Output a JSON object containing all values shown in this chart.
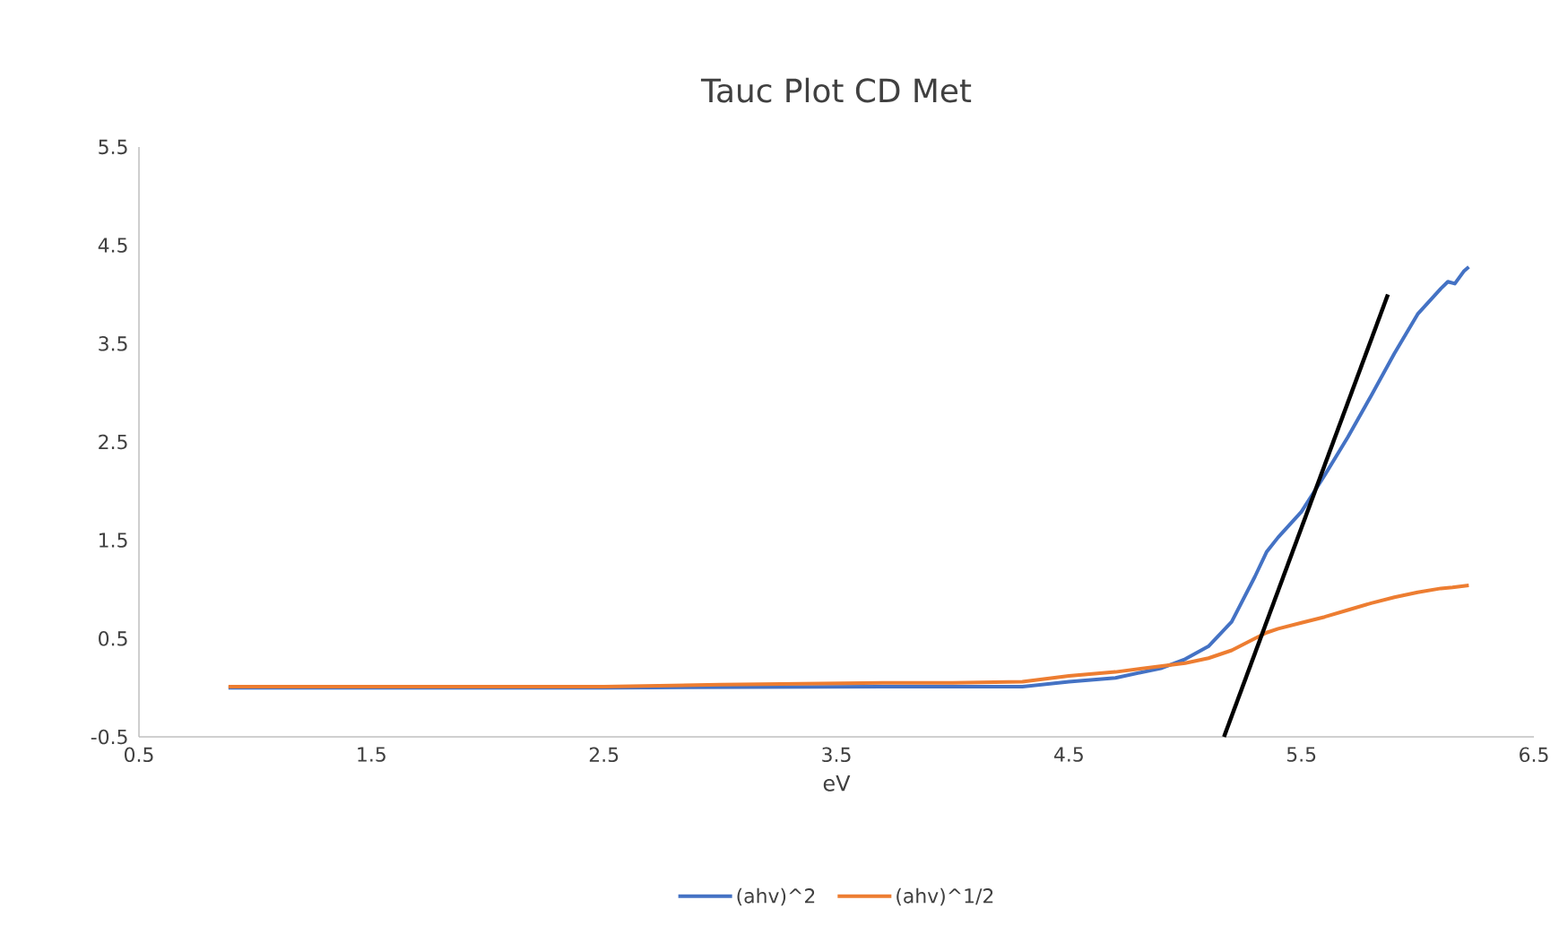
{
  "chart_data": {
    "type": "line",
    "title": "Tauc Plot CD Met",
    "xlabel": "eV",
    "xlim": [
      0.5,
      6.5
    ],
    "xticks": [
      0.5,
      1.5,
      2.5,
      3.5,
      4.5,
      5.5,
      6.5
    ],
    "ylim": [
      -0.5,
      5.5
    ],
    "yticks": [
      -0.5,
      0.5,
      1.5,
      2.5,
      3.5,
      4.5,
      5.5
    ],
    "grid": false,
    "legend": "bottom",
    "marker": "none",
    "line_style": "solid",
    "series": [
      {
        "name": "(ahv)^2",
        "color": "#4472c4",
        "x": [
          0.885,
          2.5,
          3.7,
          4.3,
          4.5,
          4.7,
          4.9,
          5.0,
          5.1,
          5.2,
          5.3,
          5.35,
          5.4,
          5.5,
          5.6,
          5.7,
          5.8,
          5.9,
          6.0,
          6.1,
          6.13,
          6.16,
          6.2,
          6.22
        ],
        "values": [
          0,
          0,
          0.01,
          0.01,
          0.06,
          0.1,
          0.2,
          0.29,
          0.42,
          0.67,
          1.13,
          1.38,
          1.53,
          1.79,
          2.16,
          2.55,
          2.97,
          3.4,
          3.8,
          4.06,
          4.13,
          4.11,
          4.24,
          4.28
        ]
      },
      {
        "name": "(ahv)^1/2",
        "color": "#ed7d31",
        "x": [
          0.885,
          2.5,
          3.0,
          3.7,
          4.0,
          4.3,
          4.5,
          4.7,
          4.9,
          5.0,
          5.1,
          5.2,
          5.3,
          5.35,
          5.4,
          5.5,
          5.6,
          5.7,
          5.8,
          5.9,
          6.0,
          6.1,
          6.15,
          6.22
        ],
        "values": [
          0.01,
          0.01,
          0.03,
          0.05,
          0.05,
          0.06,
          0.12,
          0.16,
          0.22,
          0.25,
          0.3,
          0.38,
          0.5,
          0.56,
          0.6,
          0.66,
          0.72,
          0.79,
          0.86,
          0.92,
          0.97,
          1.01,
          1.02,
          1.04
        ]
      },
      {
        "type": "line",
        "color": "#000000",
        "x": [
          5.167,
          5.872
        ],
        "values": [
          -0.5,
          4.0
        ]
      }
    ]
  }
}
